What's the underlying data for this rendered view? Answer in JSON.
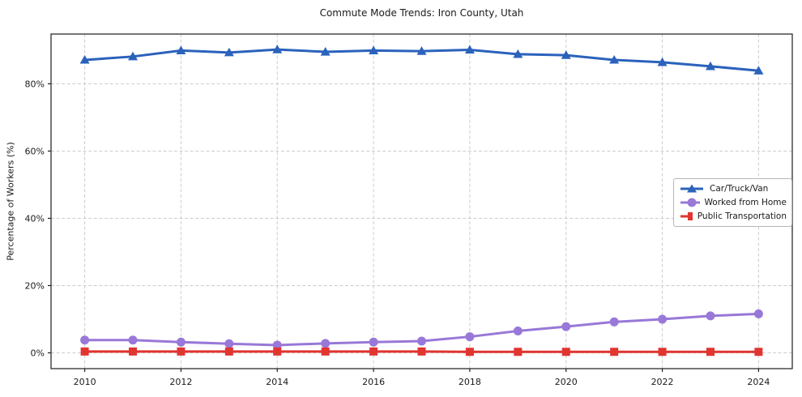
{
  "figure": {
    "background": "#ffffff"
  },
  "chart_data": {
    "type": "line",
    "title": "Commute Mode Trends: Iron County, Utah",
    "xlabel": "",
    "ylabel": "Percentage of Workers (%)",
    "x": [
      2010,
      2011,
      2012,
      2013,
      2014,
      2015,
      2016,
      2017,
      2018,
      2019,
      2020,
      2021,
      2022,
      2023,
      2024
    ],
    "series": [
      {
        "name": "Car/Truck/Van",
        "color": "#2b62bc",
        "marker": "triangle",
        "values": [
          87.1,
          88.1,
          89.9,
          89.3,
          90.2,
          89.5,
          89.9,
          89.7,
          90.1,
          88.8,
          88.5,
          87.1,
          86.4,
          85.2,
          83.9
        ]
      },
      {
        "name": "Worked from Home",
        "color": "#9878d8",
        "marker": "circle",
        "values": [
          3.8,
          3.8,
          3.2,
          2.7,
          2.3,
          2.8,
          3.2,
          3.5,
          4.8,
          6.5,
          7.8,
          9.2,
          10.0,
          11.0,
          11.6
        ]
      },
      {
        "name": "Public Transportation",
        "color": "#e03531",
        "marker": "square",
        "values": [
          0.4,
          0.4,
          0.4,
          0.4,
          0.4,
          0.4,
          0.4,
          0.4,
          0.3,
          0.3,
          0.3,
          0.3,
          0.3,
          0.3,
          0.3
        ]
      }
    ],
    "xticks": [
      2010,
      2012,
      2014,
      2016,
      2018,
      2020,
      2022,
      2024
    ],
    "xtick_labels": [
      "2010",
      "2012",
      "2014",
      "2016",
      "2018",
      "2020",
      "2022",
      "2024"
    ],
    "yticks": [
      0,
      20,
      40,
      60,
      80
    ],
    "ytick_labels": [
      "0%",
      "20%",
      "40%",
      "60%",
      "80%"
    ],
    "xlim": [
      2009.3,
      2024.7
    ],
    "ylim": [
      -4.7,
      94.8
    ],
    "grid": true,
    "grid_style": "dashed",
    "legend_position": "center right",
    "colors": {
      "grid": "#cccccc",
      "spine": "#1c1c1c",
      "text": "#1a1a1a",
      "legend_border": "#b7b7b7"
    }
  }
}
